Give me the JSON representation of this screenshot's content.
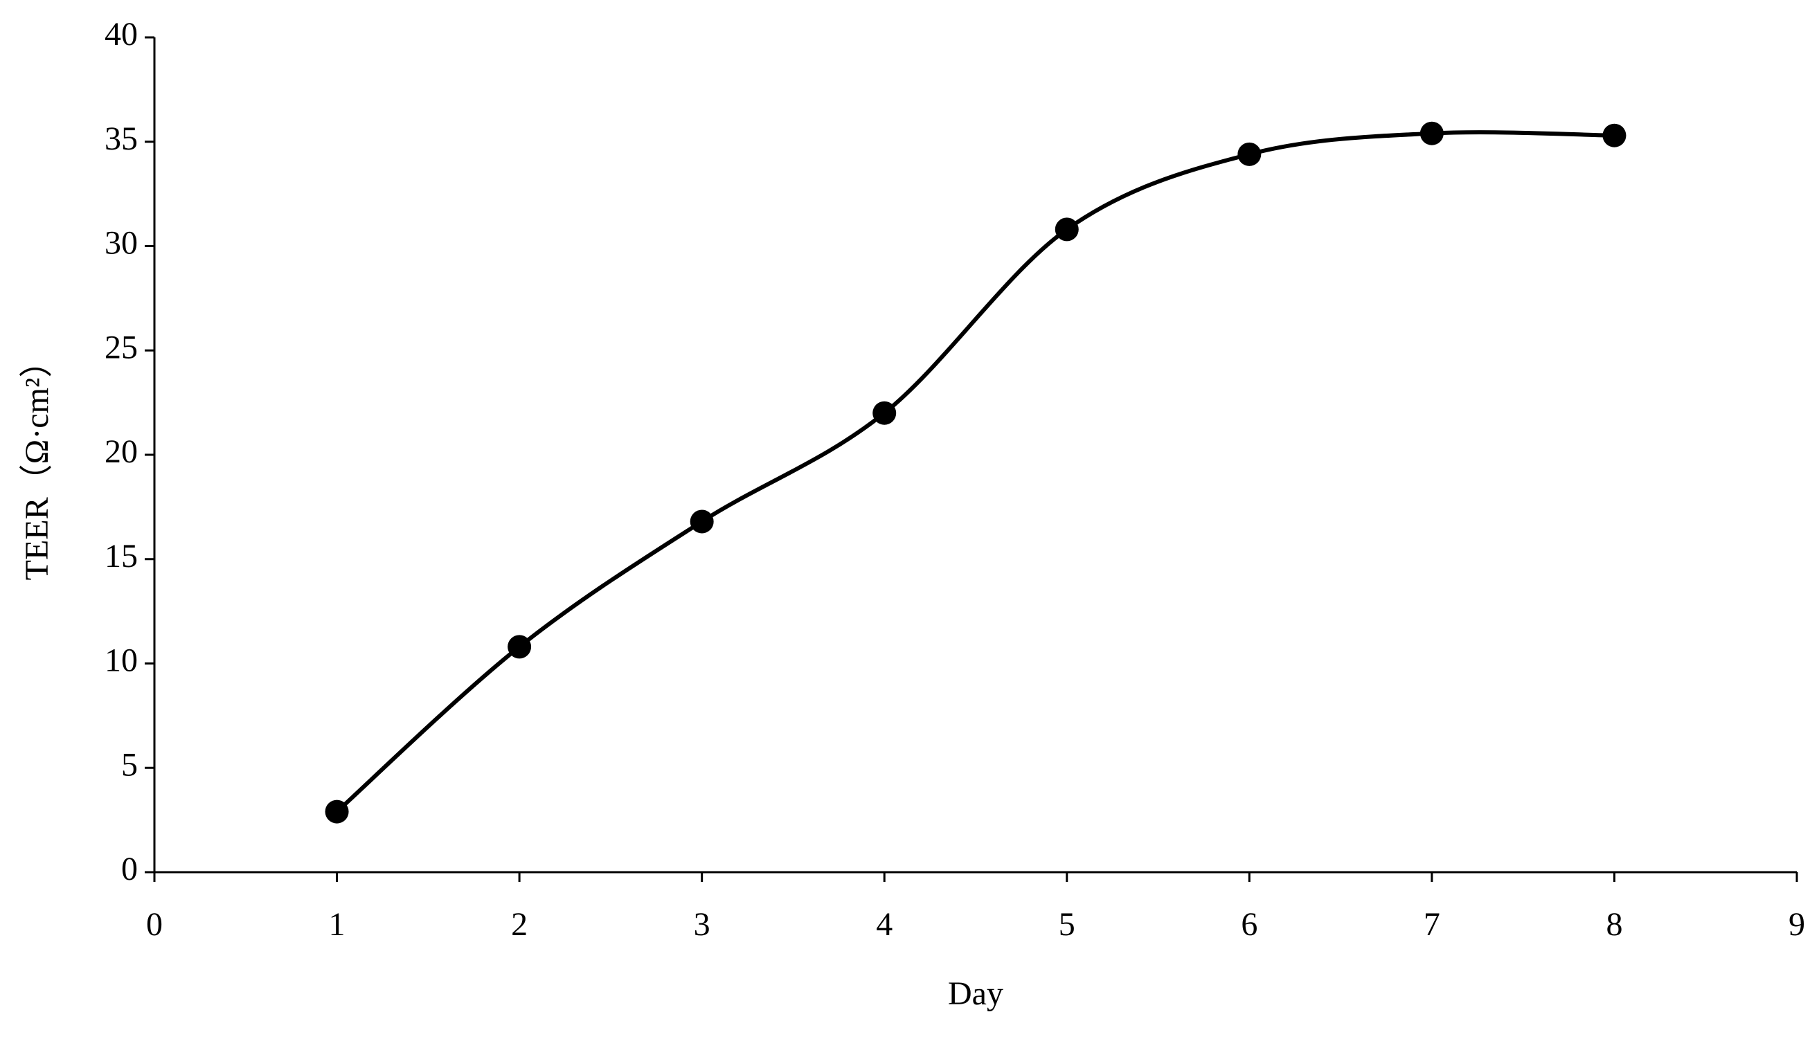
{
  "chart_data": {
    "type": "line",
    "x": [
      1,
      2,
      3,
      4,
      5,
      6,
      7,
      8
    ],
    "values": [
      2.9,
      10.8,
      16.8,
      22.0,
      30.8,
      34.4,
      35.4,
      35.3
    ],
    "color": "#000000",
    "smooth": true,
    "markers": true,
    "xlabel": "Day",
    "ylabel": "TEER（Ω·cm²）",
    "xlim": [
      0,
      9
    ],
    "xticks": [
      0,
      1,
      2,
      3,
      4,
      5,
      6,
      7,
      8,
      9
    ],
    "ylim": [
      0,
      40
    ],
    "yticks": [
      0,
      5,
      10,
      15,
      20,
      25,
      30,
      35,
      40
    ],
    "grid": false
  }
}
